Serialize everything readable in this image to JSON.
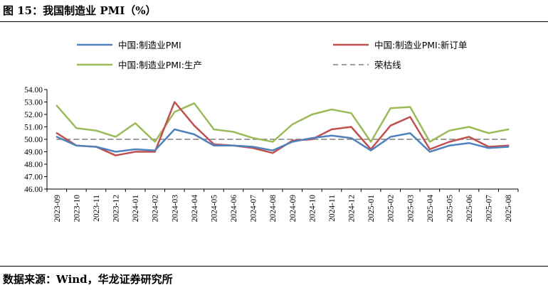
{
  "figure": {
    "title": "图 15：我国制造业 PMI（%）",
    "source": "数据来源：Wind，华龙证券研究所"
  },
  "chart_data": {
    "type": "line",
    "title": "",
    "xlabel": "",
    "ylabel": "",
    "ylim": [
      46.0,
      54.0
    ],
    "yticks": [
      "54.00",
      "53.00",
      "52.00",
      "51.00",
      "50.00",
      "49.00",
      "48.00",
      "47.00",
      "46.00"
    ],
    "ytick_values": [
      54,
      53,
      52,
      51,
      50,
      49,
      48,
      47,
      46
    ],
    "categories": [
      "2023-09",
      "2023-10",
      "2023-11",
      "2023-12",
      "2024-01",
      "2024-02",
      "2024-03",
      "2024-04",
      "2024-05",
      "2024-06",
      "2024-07",
      "2024-08",
      "2024-09",
      "2024-10",
      "2024-11",
      "2024-12",
      "2025-01",
      "2025-02",
      "2025-03",
      "2025-04",
      "2025-05",
      "2025-06",
      "2025-07",
      "2025-08"
    ],
    "legend_position": "top",
    "series": [
      {
        "name": "中国:制造业PMI",
        "color": "#4f81bd",
        "dash": false,
        "values": [
          50.2,
          49.5,
          49.4,
          49.0,
          49.2,
          49.1,
          50.8,
          50.4,
          49.5,
          49.5,
          49.4,
          49.1,
          49.8,
          50.1,
          50.3,
          50.1,
          49.1,
          50.2,
          50.5,
          49.0,
          49.5,
          49.7,
          49.3,
          49.4
        ]
      },
      {
        "name": "中国:制造业PMI:新订单",
        "color": "#c0504d",
        "dash": false,
        "values": [
          50.5,
          49.5,
          49.4,
          48.7,
          49.0,
          49.0,
          53.0,
          51.1,
          49.6,
          49.5,
          49.3,
          48.9,
          49.9,
          50.0,
          50.8,
          51.0,
          49.2,
          51.1,
          51.8,
          49.2,
          49.8,
          50.2,
          49.4,
          49.5
        ]
      },
      {
        "name": "中国:制造业PMI:生产",
        "color": "#9bbb59",
        "dash": false,
        "values": [
          52.7,
          50.9,
          50.7,
          50.2,
          51.3,
          49.8,
          52.2,
          52.9,
          50.8,
          50.6,
          50.1,
          49.8,
          51.2,
          52.0,
          52.4,
          52.1,
          49.8,
          52.5,
          52.6,
          49.8,
          50.7,
          51.0,
          50.5,
          50.8
        ]
      },
      {
        "name": "荣枯线",
        "color": "#7f7f7f",
        "dash": true,
        "values": [
          50,
          50,
          50,
          50,
          50,
          50,
          50,
          50,
          50,
          50,
          50,
          50,
          50,
          50,
          50,
          50,
          50,
          50,
          50,
          50,
          50,
          50,
          50,
          50
        ]
      }
    ]
  }
}
